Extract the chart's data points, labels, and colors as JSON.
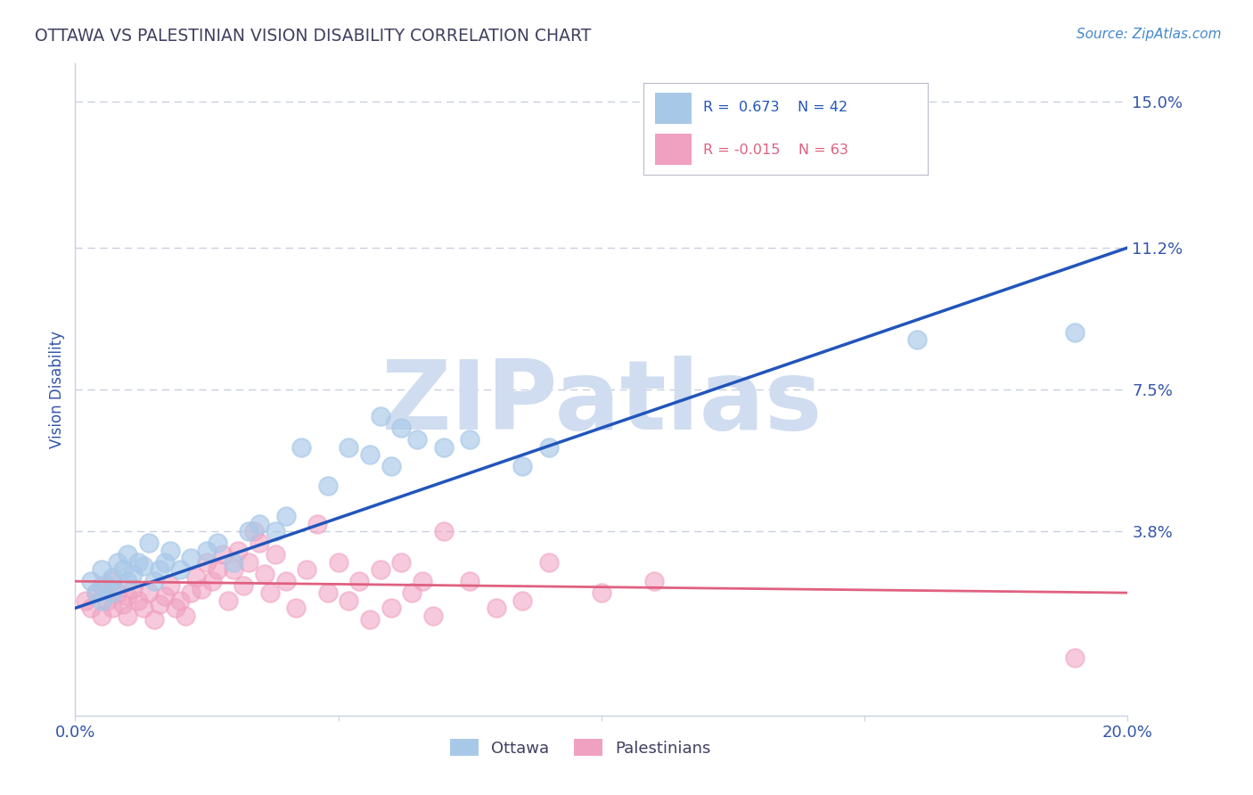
{
  "title": "OTTAWA VS PALESTINIAN VISION DISABILITY CORRELATION CHART",
  "source_text": "Source: ZipAtlas.com",
  "ylabel": "Vision Disability",
  "xlim": [
    0.0,
    0.2
  ],
  "ylim": [
    -0.01,
    0.16
  ],
  "yticks": [
    0.0,
    0.038,
    0.075,
    0.112,
    0.15
  ],
  "ytick_labels": [
    "",
    "3.8%",
    "7.5%",
    "11.2%",
    "15.0%"
  ],
  "xticks": [
    0.0,
    0.05,
    0.1,
    0.15,
    0.2
  ],
  "xtick_labels": [
    "0.0%",
    "",
    "",
    "",
    "20.0%"
  ],
  "legend_r_ottawa": "R =  0.673",
  "legend_n_ottawa": "N = 42",
  "legend_r_palestinians": "R = -0.015",
  "legend_n_palestinians": "N = 63",
  "ottawa_color": "#a8c8e8",
  "palestinians_color": "#f0a0c0",
  "blue_line_color": "#2255bb",
  "pink_line_color": "#e06080",
  "watermark": "ZIPatlas",
  "watermark_color": "#d0ddf0",
  "title_color": "#404060",
  "source_color": "#4488cc",
  "axis_label_color": "#3355aa",
  "tick_label_color": "#3355aa",
  "legend_text_color_blue": "#2255bb",
  "legend_text_color_pink": "#e06080",
  "legend_label_color": "#333355",
  "background_color": "#ffffff",
  "grid_color": "#c8d0e0",
  "ottawa_N": 42,
  "palestinians_N": 63,
  "ottawa_points": [
    [
      0.003,
      0.025
    ],
    [
      0.004,
      0.022
    ],
    [
      0.005,
      0.02
    ],
    [
      0.005,
      0.028
    ],
    [
      0.006,
      0.024
    ],
    [
      0.007,
      0.026
    ],
    [
      0.007,
      0.022
    ],
    [
      0.008,
      0.03
    ],
    [
      0.009,
      0.028
    ],
    [
      0.01,
      0.025
    ],
    [
      0.01,
      0.032
    ],
    [
      0.011,
      0.027
    ],
    [
      0.012,
      0.03
    ],
    [
      0.013,
      0.029
    ],
    [
      0.014,
      0.035
    ],
    [
      0.015,
      0.025
    ],
    [
      0.016,
      0.028
    ],
    [
      0.017,
      0.03
    ],
    [
      0.018,
      0.033
    ],
    [
      0.02,
      0.028
    ],
    [
      0.022,
      0.031
    ],
    [
      0.025,
      0.033
    ],
    [
      0.027,
      0.035
    ],
    [
      0.03,
      0.03
    ],
    [
      0.033,
      0.038
    ],
    [
      0.035,
      0.04
    ],
    [
      0.038,
      0.038
    ],
    [
      0.04,
      0.042
    ],
    [
      0.043,
      0.06
    ],
    [
      0.048,
      0.05
    ],
    [
      0.052,
      0.06
    ],
    [
      0.056,
      0.058
    ],
    [
      0.058,
      0.068
    ],
    [
      0.06,
      0.055
    ],
    [
      0.062,
      0.065
    ],
    [
      0.065,
      0.062
    ],
    [
      0.07,
      0.06
    ],
    [
      0.075,
      0.062
    ],
    [
      0.085,
      0.055
    ],
    [
      0.09,
      0.06
    ],
    [
      0.16,
      0.088
    ],
    [
      0.19,
      0.09
    ]
  ],
  "palestinians_points": [
    [
      0.002,
      0.02
    ],
    [
      0.003,
      0.018
    ],
    [
      0.004,
      0.022
    ],
    [
      0.005,
      0.016
    ],
    [
      0.005,
      0.024
    ],
    [
      0.006,
      0.02
    ],
    [
      0.007,
      0.018
    ],
    [
      0.007,
      0.025
    ],
    [
      0.008,
      0.022
    ],
    [
      0.009,
      0.019
    ],
    [
      0.01,
      0.021
    ],
    [
      0.01,
      0.016
    ],
    [
      0.011,
      0.023
    ],
    [
      0.012,
      0.02
    ],
    [
      0.013,
      0.018
    ],
    [
      0.014,
      0.022
    ],
    [
      0.015,
      0.015
    ],
    [
      0.016,
      0.019
    ],
    [
      0.017,
      0.021
    ],
    [
      0.018,
      0.024
    ],
    [
      0.019,
      0.018
    ],
    [
      0.02,
      0.02
    ],
    [
      0.021,
      0.016
    ],
    [
      0.022,
      0.022
    ],
    [
      0.023,
      0.026
    ],
    [
      0.024,
      0.023
    ],
    [
      0.025,
      0.03
    ],
    [
      0.026,
      0.025
    ],
    [
      0.027,
      0.028
    ],
    [
      0.028,
      0.032
    ],
    [
      0.029,
      0.02
    ],
    [
      0.03,
      0.028
    ],
    [
      0.031,
      0.033
    ],
    [
      0.032,
      0.024
    ],
    [
      0.033,
      0.03
    ],
    [
      0.034,
      0.038
    ],
    [
      0.035,
      0.035
    ],
    [
      0.036,
      0.027
    ],
    [
      0.037,
      0.022
    ],
    [
      0.038,
      0.032
    ],
    [
      0.04,
      0.025
    ],
    [
      0.042,
      0.018
    ],
    [
      0.044,
      0.028
    ],
    [
      0.046,
      0.04
    ],
    [
      0.048,
      0.022
    ],
    [
      0.05,
      0.03
    ],
    [
      0.052,
      0.02
    ],
    [
      0.054,
      0.025
    ],
    [
      0.056,
      0.015
    ],
    [
      0.058,
      0.028
    ],
    [
      0.06,
      0.018
    ],
    [
      0.062,
      0.03
    ],
    [
      0.064,
      0.022
    ],
    [
      0.066,
      0.025
    ],
    [
      0.068,
      0.016
    ],
    [
      0.07,
      0.038
    ],
    [
      0.075,
      0.025
    ],
    [
      0.08,
      0.018
    ],
    [
      0.085,
      0.02
    ],
    [
      0.09,
      0.03
    ],
    [
      0.1,
      0.022
    ],
    [
      0.11,
      0.025
    ],
    [
      0.19,
      0.005
    ]
  ],
  "blue_line": [
    [
      0.0,
      0.018
    ],
    [
      0.2,
      0.112
    ]
  ],
  "pink_line": [
    [
      0.0,
      0.025
    ],
    [
      0.2,
      0.022
    ]
  ]
}
